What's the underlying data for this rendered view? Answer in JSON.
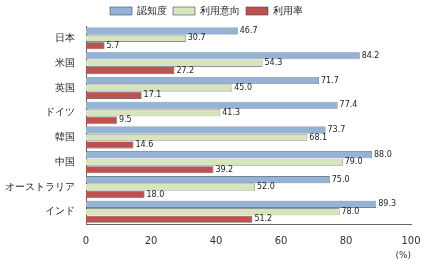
{
  "chart_data": {
    "type": "bar",
    "orientation": "horizontal",
    "categories": [
      "日本",
      "米国",
      "英国",
      "ドイツ",
      "韓国",
      "中国",
      "オーストラリア",
      "インド"
    ],
    "series": [
      {
        "name": "認知度",
        "color": "#95b3d7",
        "values": [
          46.7,
          84.2,
          71.7,
          77.4,
          73.7,
          88.0,
          75.0,
          89.3
        ],
        "value_labels": [
          "46.7",
          "84.2",
          "71.7",
          "77.4",
          "73.7",
          "88.0",
          "75.0",
          "89.3"
        ]
      },
      {
        "name": "利用意向",
        "color": "#d7e4bc",
        "values": [
          30.7,
          54.3,
          45.0,
          41.3,
          68.1,
          79.0,
          52.0,
          78.0
        ],
        "value_labels": [
          "30.7",
          "54.3",
          "45.0",
          "41.3",
          "68.1",
          "79.0",
          "52.0",
          "78.0"
        ]
      },
      {
        "name": "利用率",
        "color": "#c0504d",
        "values": [
          5.7,
          27.2,
          17.1,
          9.5,
          14.6,
          39.2,
          18.0,
          51.2
        ],
        "value_labels": [
          "5.7",
          "27.2",
          "17.1",
          "9.5",
          "14.6",
          "39.2",
          "18.0",
          "51.2"
        ]
      }
    ],
    "xlim": [
      0,
      100
    ],
    "xticks": [
      0,
      20,
      40,
      60,
      80,
      100
    ],
    "x_label": "(%)",
    "grid": false,
    "legend": "top",
    "data_labels": true
  }
}
